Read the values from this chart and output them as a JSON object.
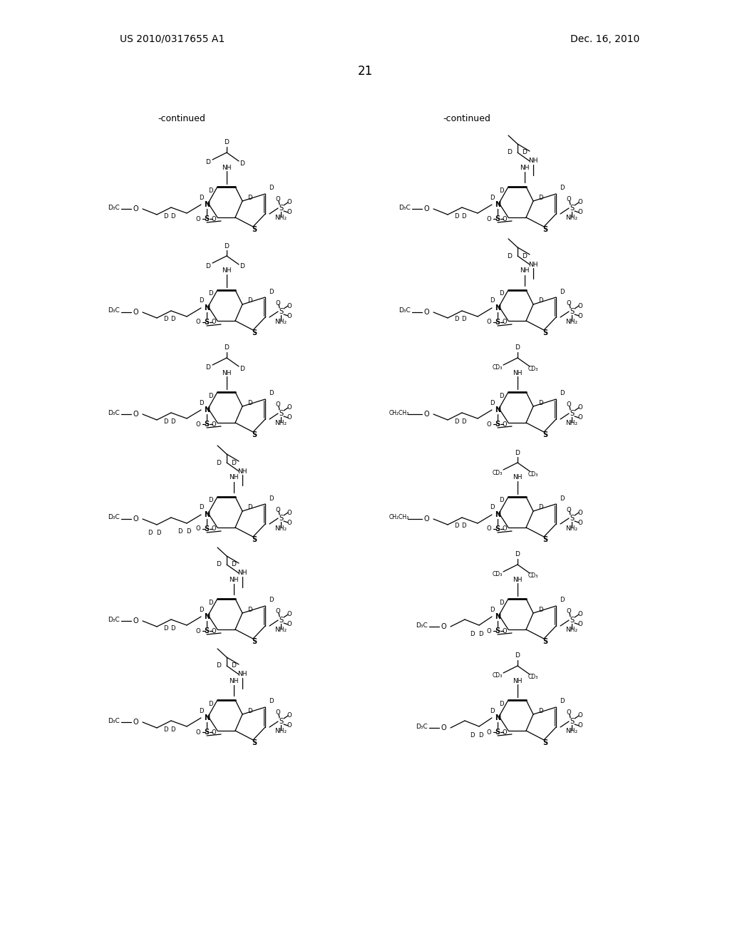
{
  "background_color": "#ffffff",
  "page_number": "21",
  "patent_number": "US 2010/0317655 A1",
  "date": "Dec. 16, 2010",
  "continued_left": "-continued",
  "continued_right": "-continued",
  "title_fontsize": 11,
  "label_fontsize": 8,
  "page_num_fontsize": 12
}
